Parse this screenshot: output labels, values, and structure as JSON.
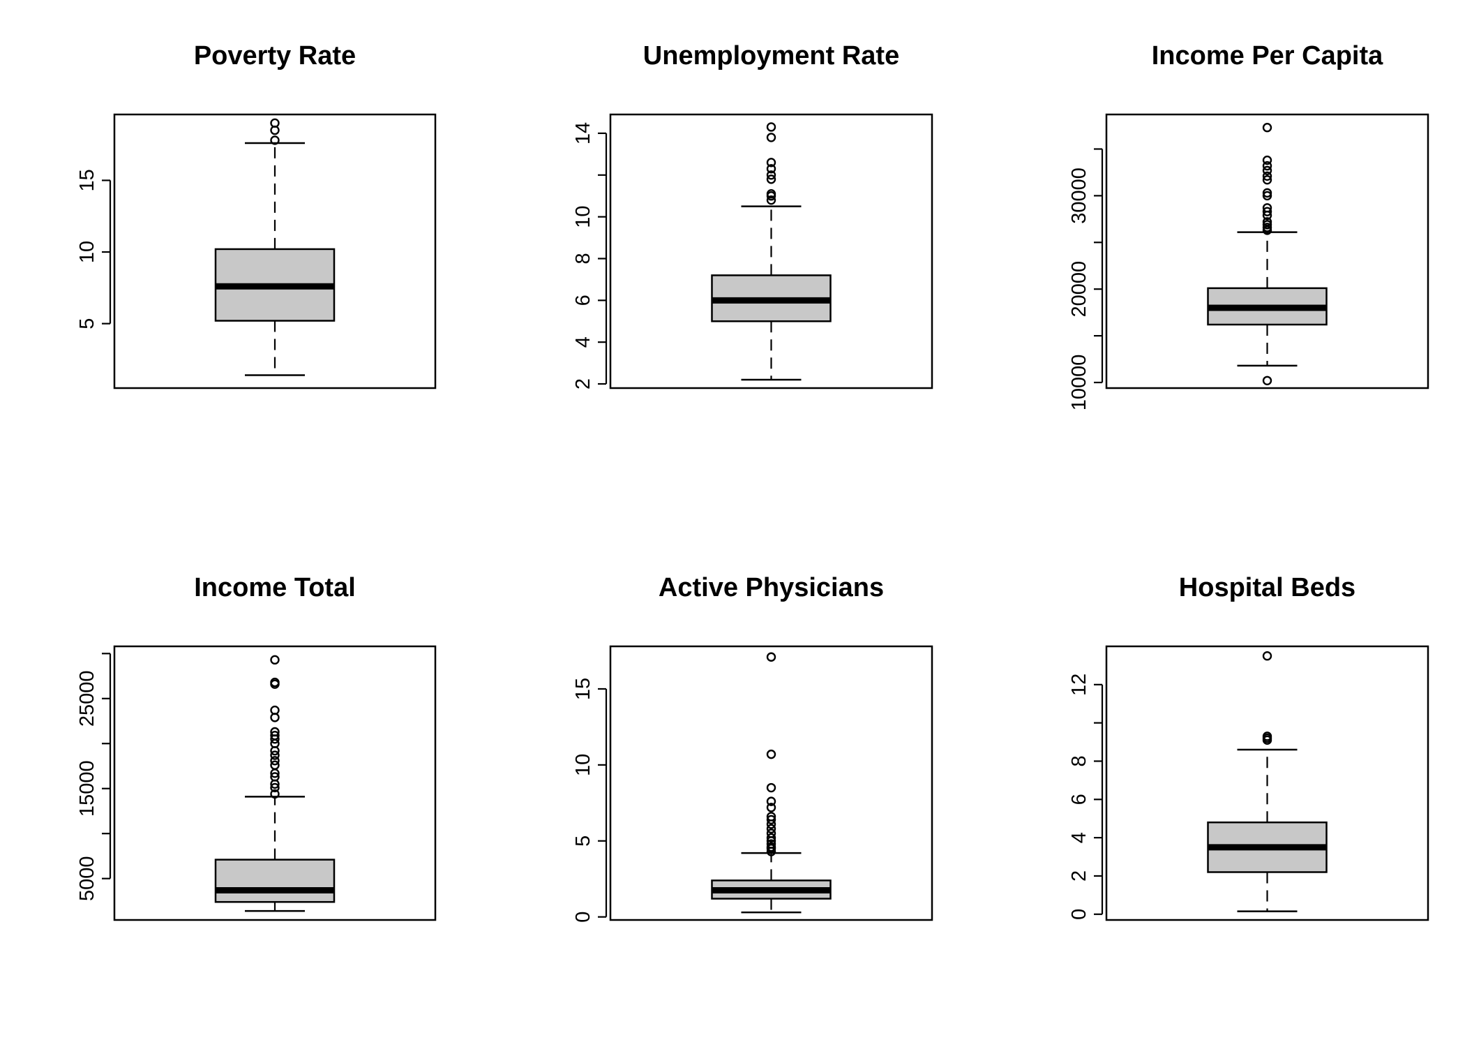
{
  "chart_data": [
    {
      "type": "boxplot",
      "title": "Poverty Rate",
      "ylim": [
        0.5,
        19.6
      ],
      "yticks": [
        5,
        10,
        15
      ],
      "ytick_labels": [
        "5",
        "10",
        "15"
      ],
      "box": {
        "whisker_low": 1.4,
        "q1": 5.2,
        "median": 7.6,
        "q3": 10.2,
        "whisker_high": 17.6
      },
      "outliers": [
        17.8,
        18.5,
        19.0
      ]
    },
    {
      "type": "boxplot",
      "title": "Unemployment Rate",
      "ylim": [
        1.8,
        14.9
      ],
      "yticks": [
        2,
        4,
        6,
        8,
        10,
        12,
        14
      ],
      "ytick_labels": [
        "2",
        "4",
        "6",
        "8",
        "10",
        "",
        "14"
      ],
      "box": {
        "whisker_low": 2.2,
        "q1": 5.0,
        "median": 6.0,
        "q3": 7.2,
        "whisker_high": 10.5
      },
      "outliers": [
        10.8,
        11.0,
        11.1,
        11.8,
        12.0,
        12.3,
        12.6,
        13.8,
        14.3
      ]
    },
    {
      "type": "boxplot",
      "title": "Income Per Capita",
      "ylim": [
        9400,
        38700
      ],
      "yticks": [
        10000,
        15000,
        20000,
        25000,
        30000,
        35000
      ],
      "ytick_labels": [
        "10000",
        "",
        "20000",
        "",
        "30000",
        ""
      ],
      "box": {
        "whisker_low": 11800,
        "q1": 16200,
        "median": 18000,
        "q3": 20100,
        "whisker_high": 26100
      },
      "outliers": [
        10200,
        26300,
        26600,
        26900,
        27200,
        27900,
        28300,
        28700,
        30000,
        30300,
        31700,
        32100,
        32700,
        33200,
        33800,
        37300
      ]
    },
    {
      "type": "boxplot",
      "title": "Income Total",
      "ylim": [
        400,
        30800
      ],
      "yticks": [
        5000,
        10000,
        15000,
        20000,
        25000,
        30000
      ],
      "ytick_labels": [
        "5000",
        "",
        "15000",
        "",
        "25000",
        ""
      ],
      "box": {
        "whisker_low": 1400,
        "q1": 2400,
        "median": 3700,
        "q3": 7100,
        "whisker_high": 14100
      },
      "outliers": [
        14400,
        15100,
        15500,
        16300,
        16700,
        17600,
        18100,
        18700,
        19200,
        20000,
        20500,
        20900,
        21300,
        22900,
        23700,
        26600,
        26800,
        29300
      ]
    },
    {
      "type": "boxplot",
      "title": "Active Physicians",
      "ylim": [
        -0.2,
        17.8
      ],
      "yticks": [
        0,
        5,
        10,
        15
      ],
      "ytick_labels": [
        "0",
        "5",
        "10",
        "15"
      ],
      "box": {
        "whisker_low": 0.3,
        "q1": 1.2,
        "median": 1.75,
        "q3": 2.4,
        "whisker_high": 4.2
      },
      "outliers": [
        4.3,
        4.5,
        4.6,
        4.8,
        5.0,
        5.2,
        5.5,
        5.8,
        6.1,
        6.4,
        6.6,
        7.2,
        7.6,
        8.5,
        10.7,
        17.1
      ]
    },
    {
      "type": "boxplot",
      "title": "Hospital Beds",
      "ylim": [
        -0.3,
        14.0
      ],
      "yticks": [
        0,
        2,
        4,
        6,
        8,
        10,
        12
      ],
      "ytick_labels": [
        "0",
        "2",
        "4",
        "6",
        "8",
        "",
        "12"
      ],
      "box": {
        "whisker_low": 0.15,
        "q1": 2.2,
        "median": 3.5,
        "q3": 4.8,
        "whisker_high": 8.6
      },
      "outliers": [
        9.1,
        9.2,
        9.3,
        13.5
      ]
    }
  ]
}
